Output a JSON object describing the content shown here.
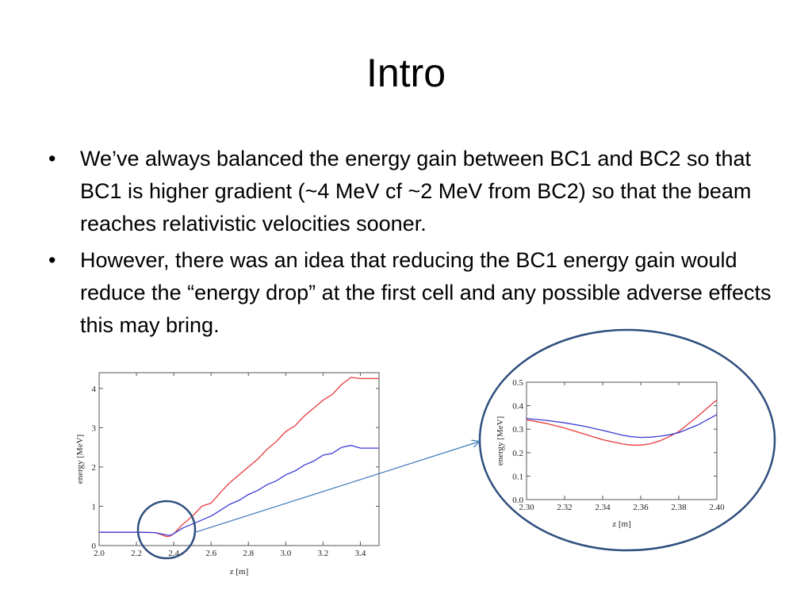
{
  "slide": {
    "title": "Intro",
    "bullets": [
      "We’ve always balanced the energy gain between BC1 and BC2 so that BC1 is higher gradient (~4 MeV cf  ~2 MeV from BC2) so that the beam reaches relativistic velocities sooner.",
      "However, there was an idea that reducing the BC1 energy gain would reduce the “energy drop” at the first cell and any possible adverse effects this may bring."
    ],
    "bullet_symbol": "•"
  },
  "colors": {
    "series_red": "#e8393d",
    "series_blue": "#3b3bd6",
    "highlight_circle": "#2f4f7f",
    "arrow": "#3a78b8"
  },
  "chart_data": [
    {
      "type": "line",
      "title": "",
      "xlabel": "z [m]",
      "ylabel": "energy [MeV]",
      "xlim": [
        2.0,
        3.5
      ],
      "ylim": [
        0,
        4.4
      ],
      "xticks": [
        "2.0",
        "2.2",
        "2.4",
        "2.6",
        "2.8",
        "3.0",
        "3.2",
        "3.4"
      ],
      "yticks": [
        "0",
        "1",
        "2",
        "3",
        "4"
      ],
      "series": [
        {
          "color": "red",
          "x": [
            2.0,
            2.2,
            2.3,
            2.34,
            2.36,
            2.38,
            2.4,
            2.45,
            2.5,
            2.55,
            2.6,
            2.65,
            2.7,
            2.75,
            2.8,
            2.85,
            2.9,
            2.95,
            3.0,
            3.05,
            3.1,
            3.15,
            3.2,
            3.25,
            3.3,
            3.35,
            3.4,
            3.5
          ],
          "y": [
            0.34,
            0.34,
            0.33,
            0.27,
            0.23,
            0.24,
            0.3,
            0.55,
            0.75,
            1.0,
            1.08,
            1.35,
            1.6,
            1.8,
            2.0,
            2.2,
            2.45,
            2.65,
            2.9,
            3.05,
            3.3,
            3.5,
            3.7,
            3.85,
            4.1,
            4.28,
            4.25,
            4.25
          ]
        },
        {
          "color": "blue",
          "x": [
            2.0,
            2.2,
            2.3,
            2.34,
            2.36,
            2.38,
            2.4,
            2.45,
            2.5,
            2.55,
            2.6,
            2.65,
            2.7,
            2.75,
            2.8,
            2.85,
            2.9,
            2.95,
            3.0,
            3.05,
            3.1,
            3.15,
            3.2,
            3.25,
            3.3,
            3.35,
            3.4,
            3.5
          ],
          "y": [
            0.34,
            0.34,
            0.33,
            0.29,
            0.27,
            0.26,
            0.3,
            0.45,
            0.55,
            0.65,
            0.75,
            0.9,
            1.05,
            1.15,
            1.3,
            1.4,
            1.55,
            1.65,
            1.8,
            1.9,
            2.05,
            2.15,
            2.3,
            2.35,
            2.5,
            2.55,
            2.48,
            2.48
          ]
        }
      ]
    },
    {
      "type": "line",
      "title": "",
      "xlabel": "z [m]",
      "ylabel": "energy [MeV]",
      "xlim": [
        2.3,
        2.4
      ],
      "ylim": [
        0.0,
        0.5
      ],
      "xticks": [
        "2.30",
        "2.32",
        "2.34",
        "2.36",
        "2.38",
        "2.40"
      ],
      "yticks": [
        "0.0",
        "0.1",
        "0.2",
        "0.3",
        "0.4",
        "0.5"
      ],
      "series": [
        {
          "color": "red",
          "x": [
            2.3,
            2.31,
            2.32,
            2.33,
            2.34,
            2.35,
            2.355,
            2.36,
            2.365,
            2.37,
            2.375,
            2.38,
            2.39,
            2.4
          ],
          "y": [
            0.34,
            0.325,
            0.305,
            0.28,
            0.255,
            0.238,
            0.232,
            0.232,
            0.238,
            0.25,
            0.268,
            0.29,
            0.355,
            0.425
          ]
        },
        {
          "color": "blue",
          "x": [
            2.3,
            2.31,
            2.32,
            2.33,
            2.34,
            2.35,
            2.355,
            2.36,
            2.365,
            2.37,
            2.375,
            2.38,
            2.39,
            2.4
          ],
          "y": [
            0.345,
            0.338,
            0.327,
            0.313,
            0.295,
            0.275,
            0.268,
            0.265,
            0.266,
            0.27,
            0.276,
            0.285,
            0.318,
            0.362
          ]
        }
      ]
    }
  ]
}
